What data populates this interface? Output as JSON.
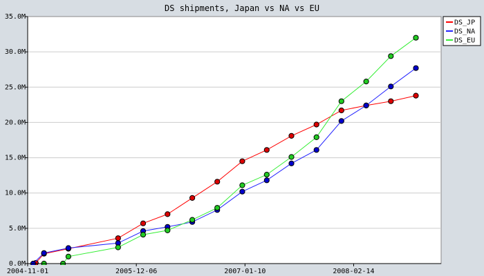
{
  "chart_data": {
    "type": "line",
    "title": "DS shipments, Japan vs NA vs EU",
    "xlabel": "",
    "ylabel": "",
    "xlim": [
      "2004-11-01",
      "2009-01-01"
    ],
    "ylim": [
      0,
      35000000
    ],
    "x_ticks": [
      "2004-11-01",
      "2005-12-06",
      "2007-01-10",
      "2008-02-14"
    ],
    "y_ticks": [
      "0.0M",
      "5.0M",
      "10.0M",
      "15.0M",
      "20.0M",
      "25.0M",
      "30.0M",
      "35.0M"
    ],
    "y_tick_values": [
      0,
      5000000,
      10000000,
      15000000,
      20000000,
      25000000,
      30000000,
      35000000
    ],
    "grid": "horizontal",
    "legend_position": "top-right",
    "series": [
      {
        "name": "DS_JP",
        "color": "#ff0000",
        "marker_color": "#dd0000",
        "x": [
          "2004-12-01",
          "2004-12-31",
          "2005-03-31",
          "2005-09-30",
          "2005-12-31",
          "2006-03-31",
          "2006-06-30",
          "2006-09-30",
          "2006-12-31",
          "2007-03-31",
          "2007-06-30",
          "2007-09-30",
          "2007-12-31",
          "2008-03-31",
          "2008-06-30",
          "2008-09-30"
        ],
        "values": [
          100000,
          1400000,
          2100000,
          3600000,
          5700000,
          7000000,
          9300000,
          11600000,
          14500000,
          16100000,
          18100000,
          19700000,
          21700000,
          22400000,
          23000000,
          23800000
        ]
      },
      {
        "name": "DS_NA",
        "color": "#2222ff",
        "marker_color": "#0000cc",
        "x": [
          "2004-11-21",
          "2004-12-31",
          "2005-03-31",
          "2005-09-30",
          "2005-12-31",
          "2006-03-31",
          "2006-06-30",
          "2006-09-30",
          "2006-12-31",
          "2007-03-31",
          "2007-06-30",
          "2007-09-30",
          "2007-12-31",
          "2008-03-31",
          "2008-06-30",
          "2008-09-30"
        ],
        "values": [
          0,
          1500000,
          2200000,
          2900000,
          4600000,
          5200000,
          5900000,
          7600000,
          10200000,
          11800000,
          14200000,
          16100000,
          20200000,
          22400000,
          25100000,
          27700000
        ]
      },
      {
        "name": "DS_EU",
        "color": "#33ee33",
        "marker_color": "#22cc22",
        "x": [
          "2004-12-31",
          "2005-03-11",
          "2005-03-31",
          "2005-09-30",
          "2005-12-31",
          "2006-03-31",
          "2006-06-30",
          "2006-09-30",
          "2006-12-31",
          "2007-03-31",
          "2007-06-30",
          "2007-09-30",
          "2007-12-31",
          "2008-03-31",
          "2008-06-30",
          "2008-09-30"
        ],
        "values": [
          0,
          0,
          1000000,
          2300000,
          4100000,
          4700000,
          6200000,
          7900000,
          11100000,
          12600000,
          15100000,
          17900000,
          23000000,
          25800000,
          29400000,
          32000000
        ]
      }
    ]
  }
}
